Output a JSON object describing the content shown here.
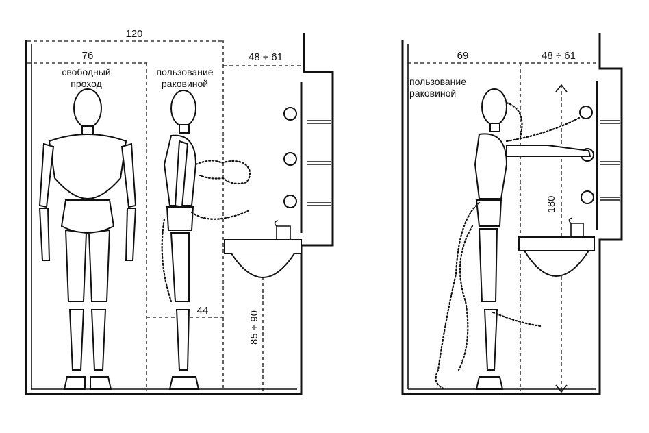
{
  "left_panel": {
    "dim_total": "120",
    "dim_passage": "76",
    "dim_sink_depth": "48 ÷ 61",
    "dim_approach": "44",
    "dim_sink_height": "85 ÷ 90",
    "label_passage": [
      "свободный",
      "проход"
    ],
    "label_use": [
      "пользование",
      "раковиной"
    ]
  },
  "right_panel": {
    "dim_use": "69",
    "dim_sink_depth": "48 ÷ 61",
    "dim_reach_height": "180",
    "label_use": [
      "пользование",
      "раковиной"
    ]
  }
}
